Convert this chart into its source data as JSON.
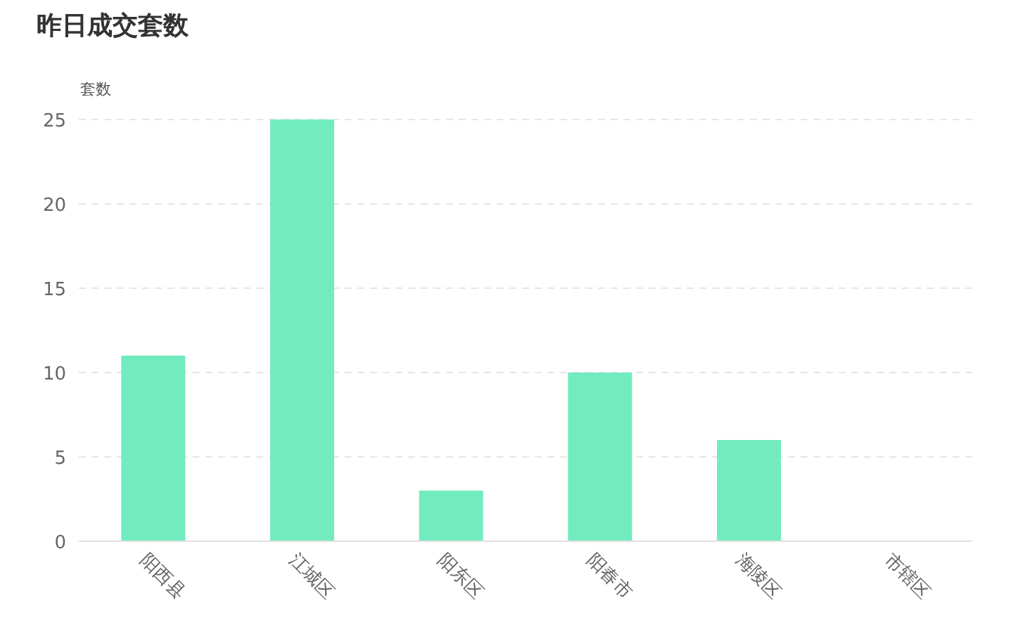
{
  "chart_data": {
    "type": "bar",
    "title": "昨日成交套数",
    "ylabel": "套数",
    "categories": [
      "阳西县",
      "江城区",
      "阳东区",
      "阳春市",
      "海陵区",
      "市辖区"
    ],
    "values": [
      11,
      25,
      3,
      10,
      6,
      0
    ],
    "color": "#72ecbf",
    "ylim": [
      0,
      25
    ],
    "yticks": [
      0,
      5,
      10,
      15,
      20,
      25
    ],
    "grid": "y"
  }
}
